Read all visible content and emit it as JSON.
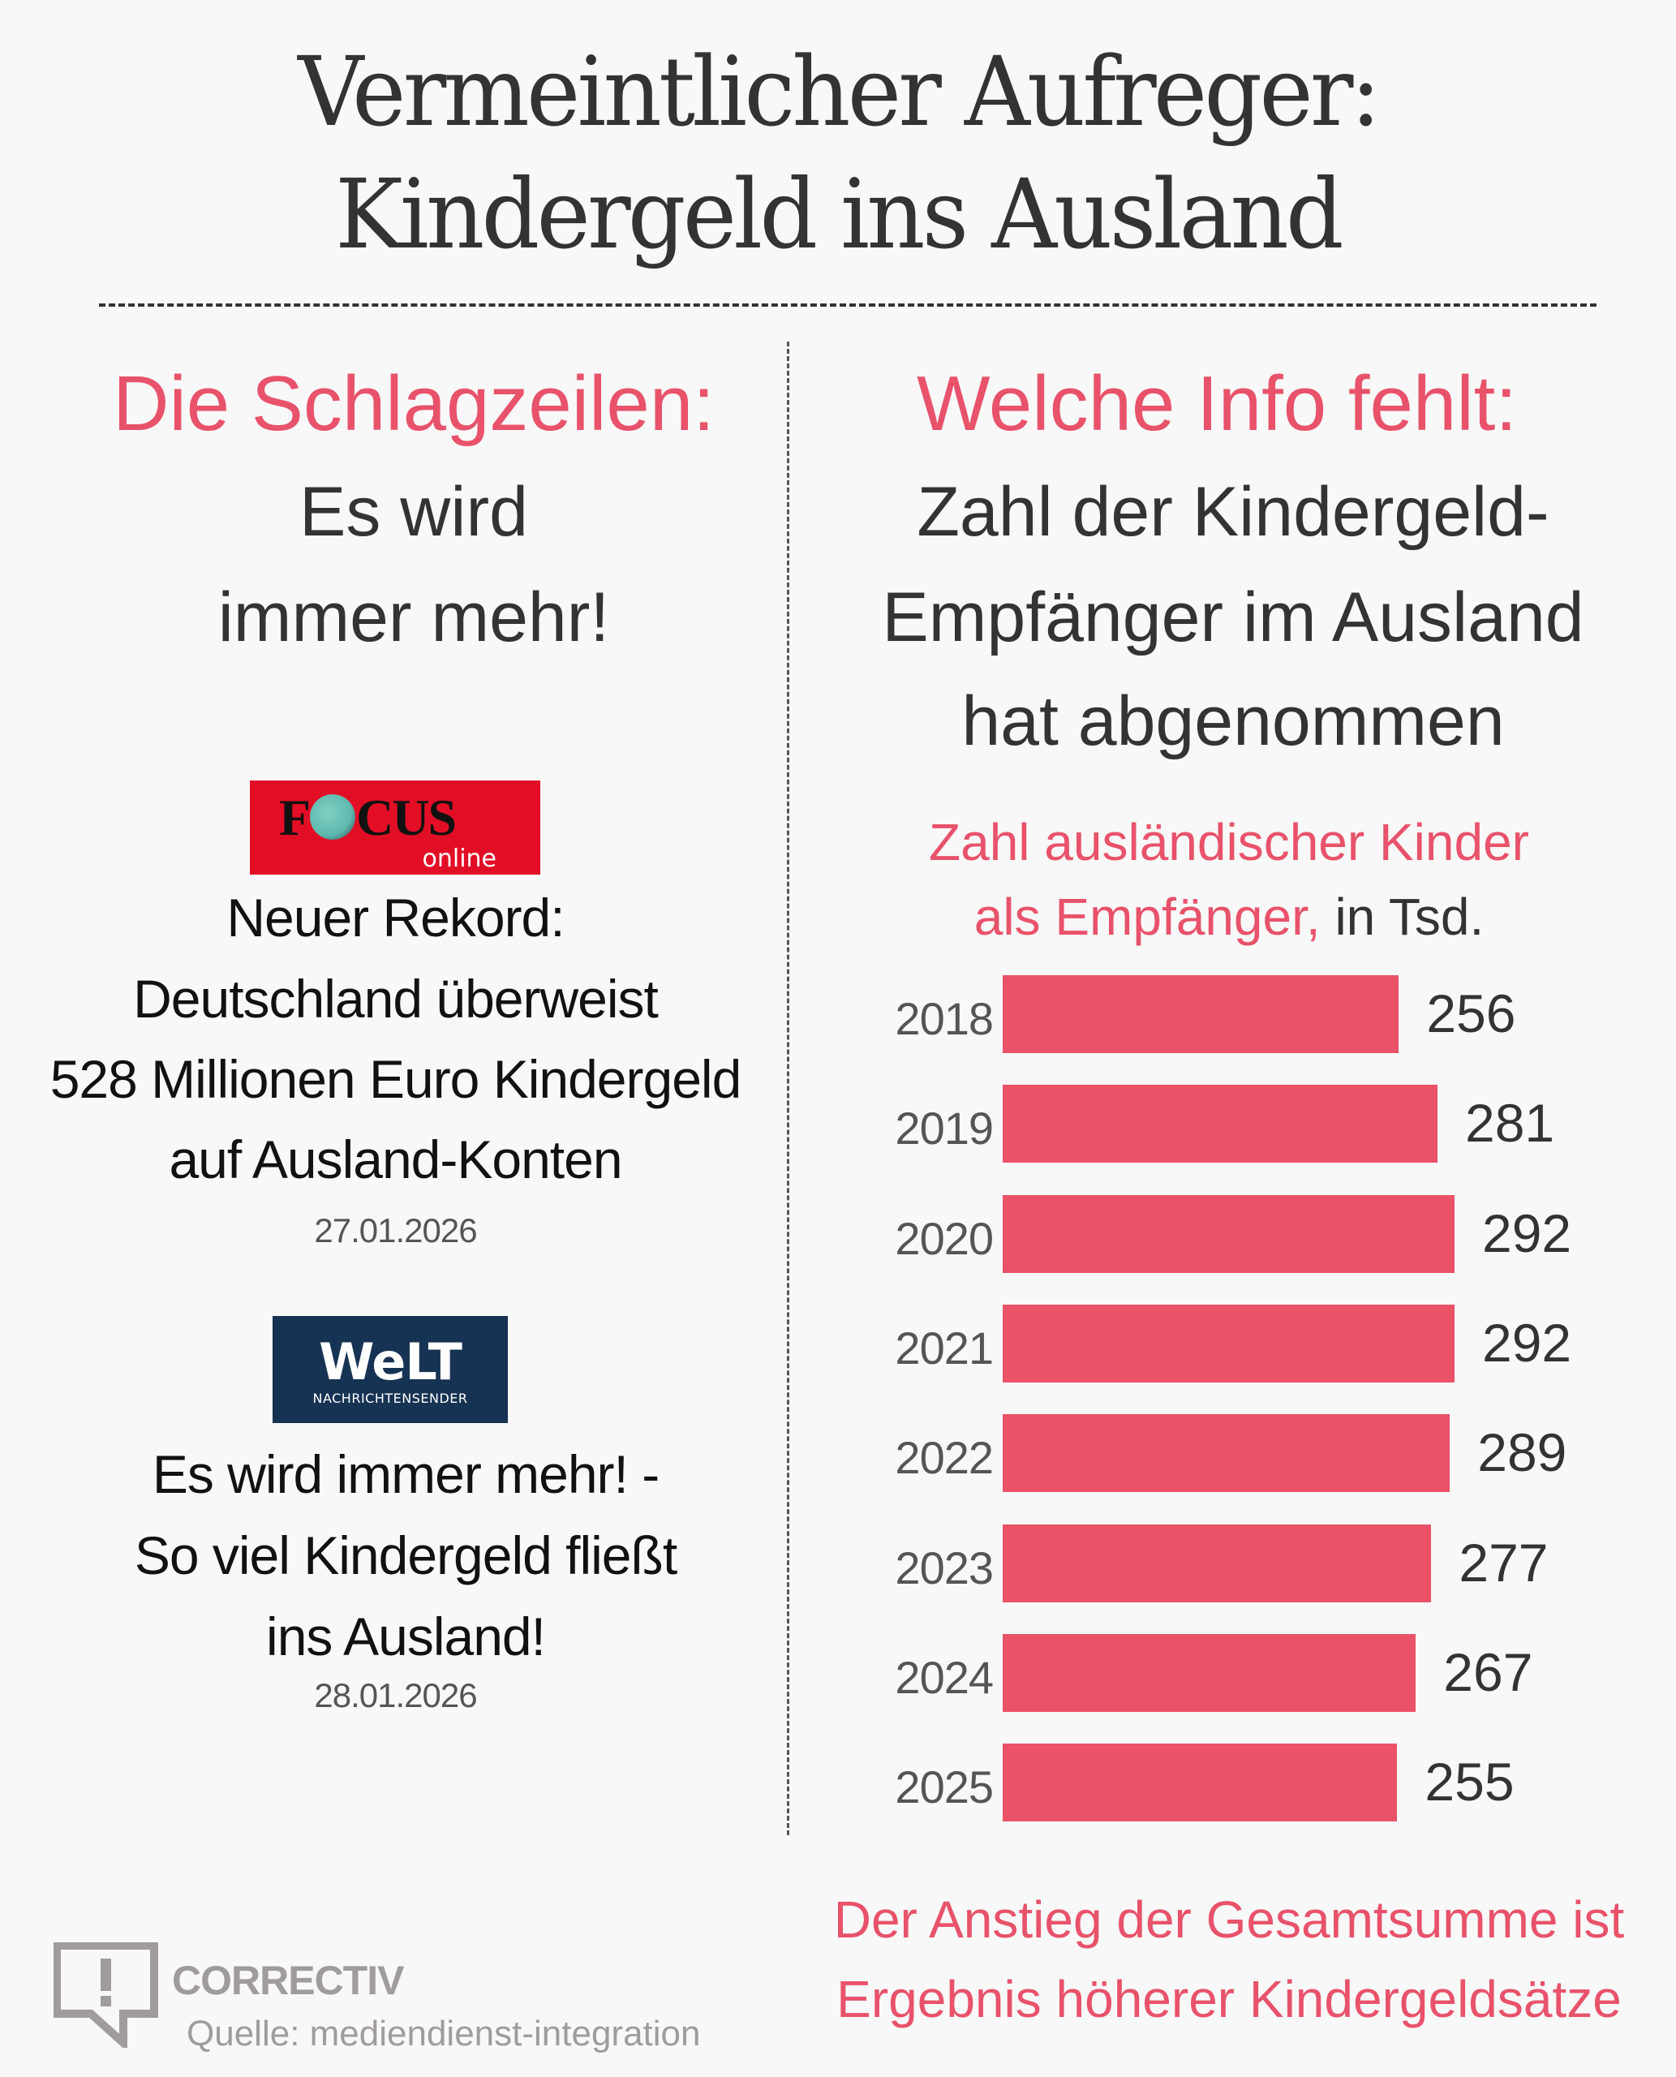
{
  "title": {
    "line1": "Vermeintlicher Aufreger:",
    "line2": "Kindergeld ins Ausland"
  },
  "left": {
    "heading": "Die Schlagzeilen:",
    "claim_lines": [
      "Es wird",
      "immer mehr!"
    ],
    "articles": [
      {
        "outlet": "FOCUS online",
        "logo_word": "FOCUS",
        "logo_sub": "online",
        "logo_color": "#e20e25",
        "headline_lines": [
          "Neuer Rekord:",
          "Deutschland überweist",
          "528 Millionen Euro Kindergeld",
          "auf Ausland-Konten"
        ],
        "date": "27.01.2026"
      },
      {
        "outlet": "WELT Nachrichtensender",
        "logo_word": "WeLT",
        "logo_sub": "NACHRICHTENSENDER",
        "logo_color": "#163353",
        "headline_lines": [
          "Es wird immer mehr! -",
          "So viel Kindergeld fließt",
          "ins Ausland!"
        ],
        "date": "28.01.2026"
      }
    ]
  },
  "right": {
    "heading": "Welche Info fehlt:",
    "claim_lines": [
      "Zahl der Kindergeld-",
      "Empfänger im Ausland",
      "hat abgenommen"
    ],
    "bottom_note_lines": [
      "Der Anstieg der Gesamtsumme ist",
      "Ergebnis höherer Kindergeldsätze"
    ]
  },
  "chart_data": {
    "type": "bar",
    "orientation": "horizontal",
    "title": "Zahl ausländischer Kinder als Empfänger, in Tsd.",
    "title_lines": [
      "Zahl ausländischer Kinder",
      "als Empfänger,"
    ],
    "unit_label": "in Tsd.",
    "categories": [
      "2018",
      "2019",
      "2020",
      "2021",
      "2022",
      "2023",
      "2024",
      "2025"
    ],
    "values": [
      256,
      281,
      292,
      292,
      289,
      277,
      267,
      255
    ],
    "xlabel": "",
    "ylabel": "",
    "xlim": [
      0,
      292
    ],
    "grid": false,
    "data_labels": true,
    "bar_color": "#ea5268"
  },
  "footer": {
    "logo_text": "CORRECTIV",
    "logo_icon": "speech-bubble-exclamation-icon",
    "source": "Quelle: mediendienst-integration"
  },
  "colors": {
    "accent": "#e8526a",
    "text": "#333333",
    "background": "#f8f8f8",
    "logo_gray": "#a09c9b"
  }
}
